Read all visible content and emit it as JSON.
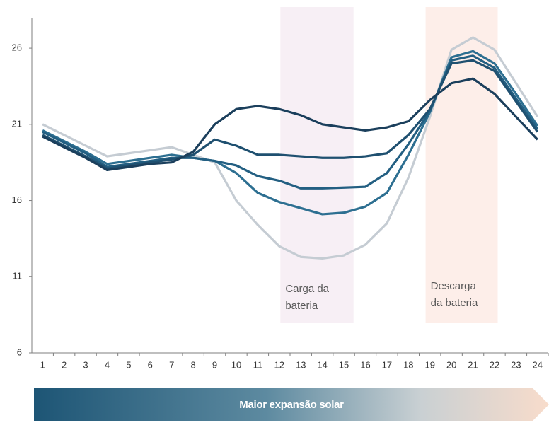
{
  "chart_data": {
    "type": "line",
    "x": [
      1,
      2,
      3,
      4,
      5,
      6,
      7,
      8,
      9,
      10,
      11,
      12,
      13,
      14,
      15,
      16,
      17,
      18,
      19,
      20,
      21,
      22,
      23,
      24
    ],
    "xlim": [
      0.5,
      24.5
    ],
    "xticks": [
      1,
      2,
      3,
      4,
      5,
      6,
      7,
      8,
      9,
      10,
      11,
      12,
      13,
      14,
      15,
      16,
      17,
      18,
      19,
      20,
      21,
      22,
      23,
      24
    ],
    "ylim": [
      6,
      28
    ],
    "yticks": [
      6,
      11,
      16,
      21,
      26
    ],
    "series": [
      {
        "color": "#1b3f5c",
        "values": [
          20.2,
          19.5,
          18.8,
          18.0,
          18.2,
          18.4,
          18.5,
          19.2,
          21.0,
          22.0,
          22.2,
          22.0,
          21.6,
          21.0,
          20.8,
          20.6,
          20.8,
          21.2,
          22.6,
          23.7,
          24.0,
          23.0,
          21.5,
          20.0
        ]
      },
      {
        "color": "#1f5070",
        "values": [
          20.3,
          19.6,
          18.9,
          18.1,
          18.3,
          18.5,
          18.7,
          19.0,
          20.0,
          19.6,
          19.0,
          19.0,
          18.9,
          18.8,
          18.8,
          18.9,
          19.1,
          20.3,
          22.0,
          25.0,
          25.2,
          24.5,
          22.5,
          20.5
        ]
      },
      {
        "color": "#235f82",
        "values": [
          20.5,
          19.8,
          19.1,
          18.2,
          18.4,
          18.6,
          18.8,
          18.8,
          18.6,
          18.3,
          17.6,
          17.3,
          16.8,
          16.8,
          16.85,
          16.9,
          17.8,
          19.7,
          21.9,
          25.2,
          25.5,
          24.7,
          22.7,
          20.7
        ]
      },
      {
        "color": "#2d6f91",
        "values": [
          20.6,
          19.9,
          19.2,
          18.4,
          18.6,
          18.8,
          19.0,
          18.8,
          18.6,
          17.8,
          16.5,
          15.9,
          15.5,
          15.1,
          15.2,
          15.6,
          16.5,
          19.0,
          21.8,
          25.4,
          25.8,
          25.0,
          23.0,
          20.9
        ]
      },
      {
        "color": "#c5ccd3",
        "values": [
          21.0,
          20.3,
          19.6,
          18.9,
          19.1,
          19.3,
          19.5,
          19.0,
          18.5,
          16.0,
          14.4,
          13.0,
          12.3,
          12.2,
          12.4,
          13.1,
          14.5,
          17.5,
          21.5,
          25.9,
          26.7,
          25.9,
          23.7,
          21.5
        ]
      }
    ],
    "bands": [
      {
        "range": [
          12.05,
          15.45
        ],
        "color": "#f7eff5",
        "label": [
          "Carga da",
          "bateria"
        ]
      },
      {
        "range": [
          18.8,
          22.15
        ],
        "color": "#fdeee9",
        "label": [
          "Descarga",
          "da bateria"
        ]
      }
    ],
    "arrow_label": "Maior expansão solar"
  }
}
